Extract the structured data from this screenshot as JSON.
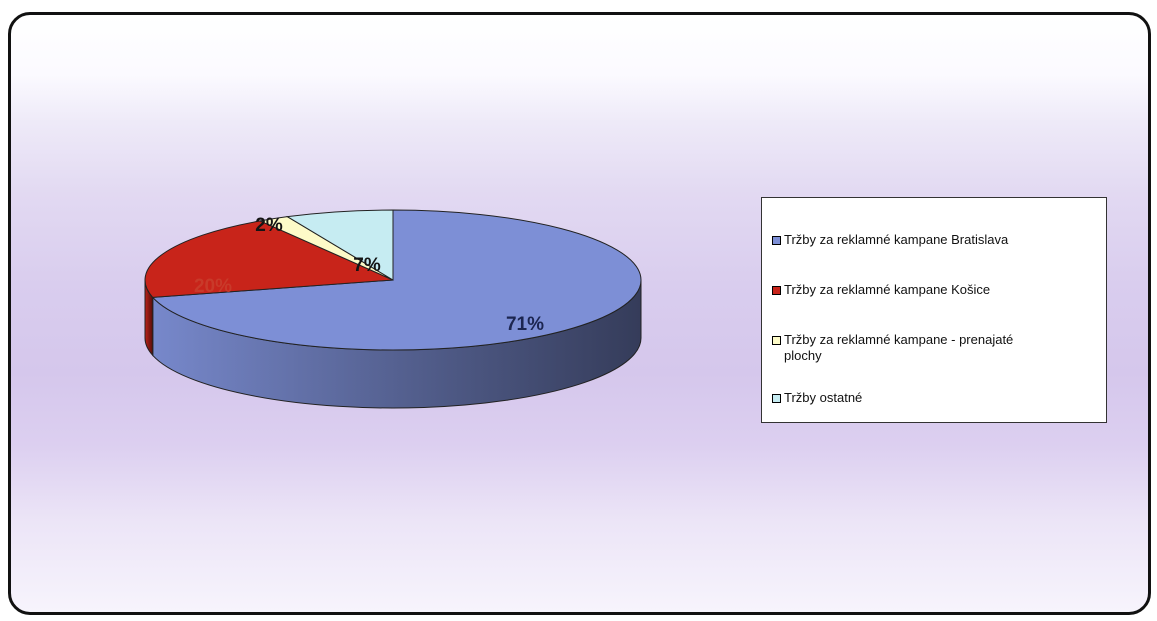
{
  "chart_data": {
    "type": "pie",
    "title": "",
    "legend_position": "right",
    "slices": [
      {
        "label": "Tržby za reklamné kampane Bratislava",
        "value": 71,
        "data_label": "71%",
        "color": "#7d8fd6"
      },
      {
        "label": "Tržby za reklamné kampane Košice",
        "value": 20,
        "data_label": "20%",
        "color": "#c8241a"
      },
      {
        "label": "Tržby za reklamné kampane - prenajaté plochy",
        "value": 2,
        "data_label": "2%",
        "color": "#fdfbc8"
      },
      {
        "label": "Tržby ostatné",
        "value": 7,
        "data_label": "7%",
        "color": "#c6ecf2"
      }
    ]
  }
}
